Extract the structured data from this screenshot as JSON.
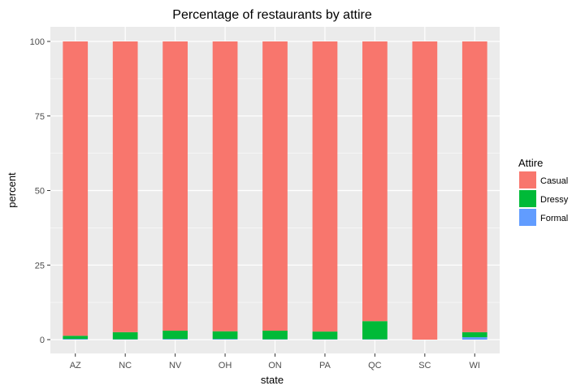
{
  "chart_data": {
    "type": "bar",
    "stacked": true,
    "title": "Percentage of restaurants by attire",
    "xlabel": "state",
    "ylabel": "percent",
    "ylim": [
      0,
      100
    ],
    "yticks": [
      0,
      25,
      50,
      75,
      100
    ],
    "categories": [
      "AZ",
      "NC",
      "NV",
      "OH",
      "ON",
      "PA",
      "QC",
      "SC",
      "WI"
    ],
    "series": [
      {
        "name": "Formal",
        "color": "#619CFF",
        "values": [
          0.2,
          0.1,
          0.2,
          0.2,
          0.1,
          0.1,
          0.1,
          0.0,
          0.8
        ]
      },
      {
        "name": "Dressy",
        "color": "#00BA38",
        "values": [
          1.1,
          2.4,
          2.8,
          2.6,
          2.9,
          2.6,
          6.1,
          0.0,
          1.7
        ]
      },
      {
        "name": "Casual",
        "color": "#F8766D",
        "values": [
          98.7,
          97.5,
          97.0,
          97.2,
          97.0,
          97.3,
          93.8,
          100.0,
          97.5
        ]
      }
    ],
    "legend": {
      "title": "Attire",
      "placement": "right",
      "entries": [
        {
          "label": "Casual",
          "color": "#F8766D"
        },
        {
          "label": "Dressy",
          "color": "#00BA38"
        },
        {
          "label": "Formal",
          "color": "#619CFF"
        }
      ]
    },
    "grid": true,
    "panel_color": "#EBEBEB",
    "grid_color": "#FFFFFF"
  }
}
